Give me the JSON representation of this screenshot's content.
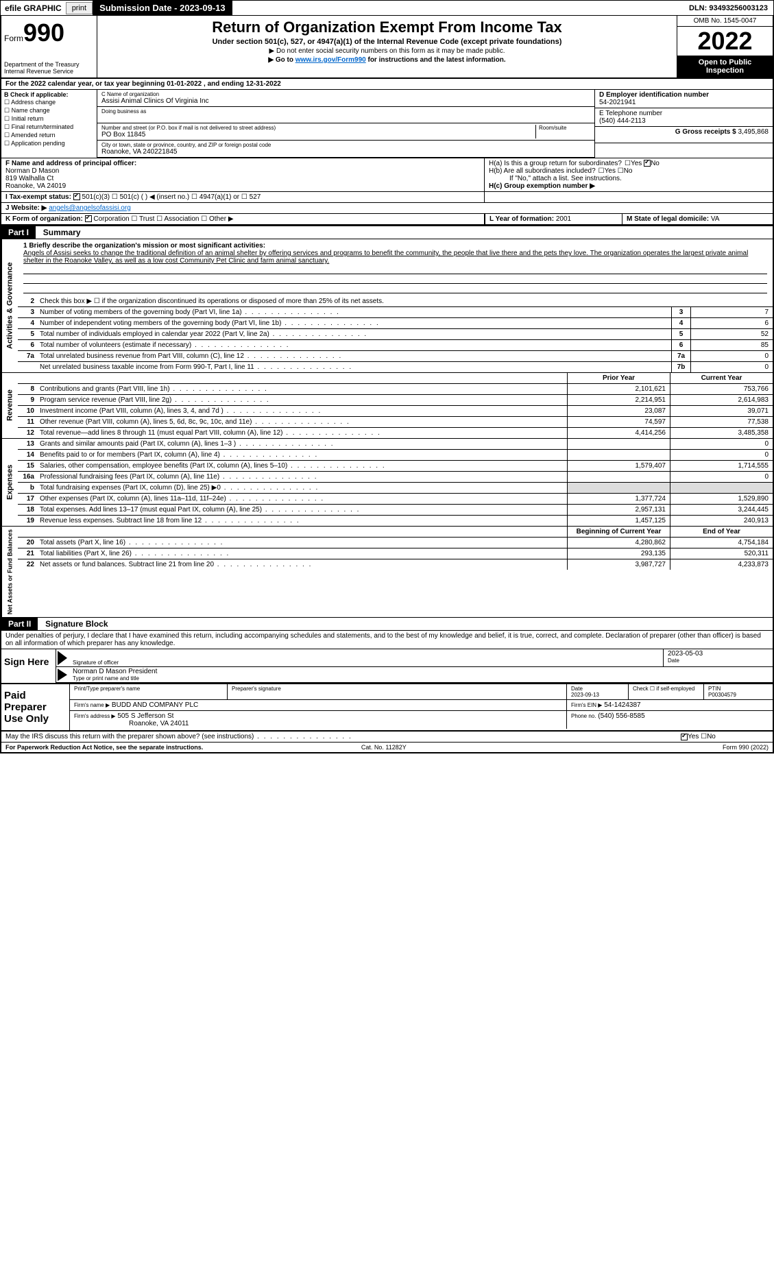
{
  "topbar": {
    "efile": "efile GRAPHIC",
    "print": "print",
    "subdate": "Submission Date - 2023-09-13",
    "dln": "DLN: 93493256003123"
  },
  "header": {
    "form_prefix": "Form",
    "form_no": "990",
    "dept": "Department of the Treasury Internal Revenue Service",
    "title": "Return of Organization Exempt From Income Tax",
    "sub": "Under section 501(c), 527, or 4947(a)(1) of the Internal Revenue Code (except private foundations)",
    "note1": "▶ Do not enter social security numbers on this form as it may be made public.",
    "note2_pre": "▶ Go to ",
    "note2_link": "www.irs.gov/Form990",
    "note2_post": " for instructions and the latest information.",
    "omb": "OMB No. 1545-0047",
    "year": "2022",
    "open": "Open to Public Inspection"
  },
  "period": "For the 2022 calendar year, or tax year beginning 01-01-2022   , and ending 12-31-2022",
  "B": {
    "label": "B Check if applicable:",
    "items": [
      "Address change",
      "Name change",
      "Initial return",
      "Final return/terminated",
      "Amended return",
      "Application pending"
    ]
  },
  "C": {
    "name_label": "C Name of organization",
    "name": "Assisi Animal Clinics Of Virginia Inc",
    "dba_label": "Doing business as",
    "dba": "",
    "addr_label": "Number and street (or P.O. box if mail is not delivered to street address)",
    "room_label": "Room/suite",
    "addr": "PO Box 11845",
    "city_label": "City or town, state or province, country, and ZIP or foreign postal code",
    "city": "Roanoke, VA  240221845"
  },
  "D": {
    "ein_label": "D Employer identification number",
    "ein": "54-2021941",
    "phone_label": "E Telephone number",
    "phone": "(540) 444-2113",
    "gross_label": "G Gross receipts $",
    "gross": "3,495,868"
  },
  "F": {
    "label": "F  Name and address of principal officer:",
    "name": "Norman D Mason",
    "addr1": "819 Walhalla Ct",
    "addr2": "Roanoke, VA  24019"
  },
  "H": {
    "a": "H(a)  Is this a group return for subordinates?",
    "a_yes": "Yes",
    "a_no": "No",
    "b": "H(b)  Are all subordinates included?",
    "b_yes": "Yes",
    "b_no": "No",
    "b_note": "If \"No,\" attach a list. See instructions.",
    "c": "H(c)  Group exemption number ▶"
  },
  "I": {
    "label": "I    Tax-exempt status:",
    "c3": "501(c)(3)",
    "c": "501(c) (  ) ◀ (insert no.)",
    "a1": "4947(a)(1) or",
    "527": "527"
  },
  "J": {
    "label": "J   Website: ▶",
    "val": "angels@angelsofassisi.org"
  },
  "K": {
    "label": "K Form of organization:",
    "corp": "Corporation",
    "trust": "Trust",
    "assoc": "Association",
    "other": "Other ▶"
  },
  "L": {
    "label": "L Year of formation:",
    "val": "2001"
  },
  "M": {
    "label": "M State of legal domicile:",
    "val": "VA"
  },
  "partI": {
    "hdr": "Part I",
    "title": "Summary"
  },
  "mission": {
    "label": "1  Briefly describe the organization's mission or most significant activities:",
    "text": "Angels of Assisi seeks to change the traditional definition of an animal shelter by offering services and programs to benefit the community, the people that live there and the pets they love. The organization operates the largest private animal shelter in the Roanoke Valley, as well as a low cost Community Pet Clinic and farm animal sanctuary."
  },
  "gov": {
    "l2": "Check this box ▶ ☐  if the organization discontinued its operations or disposed of more than 25% of its net assets.",
    "rows": [
      {
        "n": "3",
        "d": "Number of voting members of the governing body (Part VI, line 1a)",
        "b": "3",
        "v": "7"
      },
      {
        "n": "4",
        "d": "Number of independent voting members of the governing body (Part VI, line 1b)",
        "b": "4",
        "v": "6"
      },
      {
        "n": "5",
        "d": "Total number of individuals employed in calendar year 2022 (Part V, line 2a)",
        "b": "5",
        "v": "52"
      },
      {
        "n": "6",
        "d": "Total number of volunteers (estimate if necessary)",
        "b": "6",
        "v": "85"
      },
      {
        "n": "7a",
        "d": "Total unrelated business revenue from Part VIII, column (C), line 12",
        "b": "7a",
        "v": "0"
      },
      {
        "n": "",
        "d": "Net unrelated business taxable income from Form 990-T, Part I, line 11",
        "b": "7b",
        "v": "0"
      }
    ]
  },
  "rev_hdr": {
    "prior": "Prior Year",
    "curr": "Current Year"
  },
  "rev": [
    {
      "n": "8",
      "d": "Contributions and grants (Part VIII, line 1h)",
      "p": "2,101,621",
      "c": "753,766"
    },
    {
      "n": "9",
      "d": "Program service revenue (Part VIII, line 2g)",
      "p": "2,214,951",
      "c": "2,614,983"
    },
    {
      "n": "10",
      "d": "Investment income (Part VIII, column (A), lines 3, 4, and 7d )",
      "p": "23,087",
      "c": "39,071"
    },
    {
      "n": "11",
      "d": "Other revenue (Part VIII, column (A), lines 5, 6d, 8c, 9c, 10c, and 11e)",
      "p": "74,597",
      "c": "77,538"
    },
    {
      "n": "12",
      "d": "Total revenue—add lines 8 through 11 (must equal Part VIII, column (A), line 12)",
      "p": "4,414,256",
      "c": "3,485,358"
    }
  ],
  "exp": [
    {
      "n": "13",
      "d": "Grants and similar amounts paid (Part IX, column (A), lines 1–3 )",
      "p": "",
      "c": "0"
    },
    {
      "n": "14",
      "d": "Benefits paid to or for members (Part IX, column (A), line 4)",
      "p": "",
      "c": "0"
    },
    {
      "n": "15",
      "d": "Salaries, other compensation, employee benefits (Part IX, column (A), lines 5–10)",
      "p": "1,579,407",
      "c": "1,714,555"
    },
    {
      "n": "16a",
      "d": "Professional fundraising fees (Part IX, column (A), line 11e)",
      "p": "",
      "c": "0"
    },
    {
      "n": "b",
      "d": "Total fundraising expenses (Part IX, column (D), line 25) ▶0",
      "p": "",
      "c": "",
      "grey": true
    },
    {
      "n": "17",
      "d": "Other expenses (Part IX, column (A), lines 11a–11d, 11f–24e)",
      "p": "1,377,724",
      "c": "1,529,890"
    },
    {
      "n": "18",
      "d": "Total expenses. Add lines 13–17 (must equal Part IX, column (A), line 25)",
      "p": "2,957,131",
      "c": "3,244,445"
    },
    {
      "n": "19",
      "d": "Revenue less expenses. Subtract line 18 from line 12",
      "p": "1,457,125",
      "c": "240,913"
    }
  ],
  "na_hdr": {
    "beg": "Beginning of Current Year",
    "end": "End of Year"
  },
  "na": [
    {
      "n": "20",
      "d": "Total assets (Part X, line 16)",
      "p": "4,280,862",
      "c": "4,754,184"
    },
    {
      "n": "21",
      "d": "Total liabilities (Part X, line 26)",
      "p": "293,135",
      "c": "520,311"
    },
    {
      "n": "22",
      "d": "Net assets or fund balances. Subtract line 21 from line 20",
      "p": "3,987,727",
      "c": "4,233,873"
    }
  ],
  "sides": {
    "gov": "Activities & Governance",
    "rev": "Revenue",
    "exp": "Expenses",
    "na": "Net Assets or Fund Balances"
  },
  "partII": {
    "hdr": "Part II",
    "title": "Signature Block"
  },
  "penalty": "Under penalties of perjury, I declare that I have examined this return, including accompanying schedules and statements, and to the best of my knowledge and belief, it is true, correct, and complete. Declaration of preparer (other than officer) is based on all information of which preparer has any knowledge.",
  "sign": {
    "here": "Sign Here",
    "sig_of": "Signature of officer",
    "date": "Date",
    "sig_date": "2023-05-03",
    "name": "Norman D Mason  President",
    "name_lbl": "Type or print name and title"
  },
  "paid": {
    "title": "Paid Preparer Use Only",
    "h_name": "Print/Type preparer's name",
    "h_sig": "Preparer's signature",
    "h_date": "Date",
    "date": "2023-09-13",
    "h_chk": "Check ☐ if self-employed",
    "h_ptin": "PTIN",
    "ptin": "P00304579",
    "firm_lbl": "Firm's name    ▶",
    "firm": "BUDD AND COMPANY PLC",
    "ein_lbl": "Firm's EIN ▶",
    "ein": "54-1424387",
    "addr_lbl": "Firm's address ▶",
    "addr1": "505 S Jefferson St",
    "addr2": "Roanoke, VA  24011",
    "phone_lbl": "Phone no.",
    "phone": "(540) 556-8585"
  },
  "discuss": {
    "q": "May the IRS discuss this return with the preparer shown above? (see instructions)",
    "yes": "Yes",
    "no": "No"
  },
  "footer": {
    "left": "For Paperwork Reduction Act Notice, see the separate instructions.",
    "mid": "Cat. No. 11282Y",
    "right": "Form 990 (2022)"
  }
}
